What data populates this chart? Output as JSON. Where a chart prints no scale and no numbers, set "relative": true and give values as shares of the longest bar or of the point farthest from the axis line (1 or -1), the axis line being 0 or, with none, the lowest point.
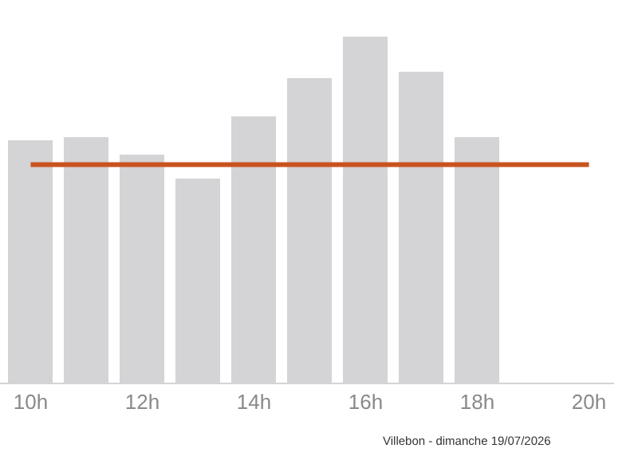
{
  "chart_data": {
    "type": "bar",
    "relative": true,
    "categories": [
      "10h",
      null,
      "12h",
      null,
      "14h",
      null,
      "16h",
      null,
      "18h",
      null,
      "20h"
    ],
    "values": [
      0.7,
      0.71,
      0.66,
      0.59,
      0.77,
      0.88,
      1,
      0.9,
      0.71,
      null,
      null
    ],
    "color": "#d4d3d5",
    "ref_lines": [
      {
        "axis": "y",
        "value": 0.63,
        "color": "#c8531f"
      }
    ],
    "annotations": [
      "Villebon - dimanche 19/07/2026"
    ]
  }
}
